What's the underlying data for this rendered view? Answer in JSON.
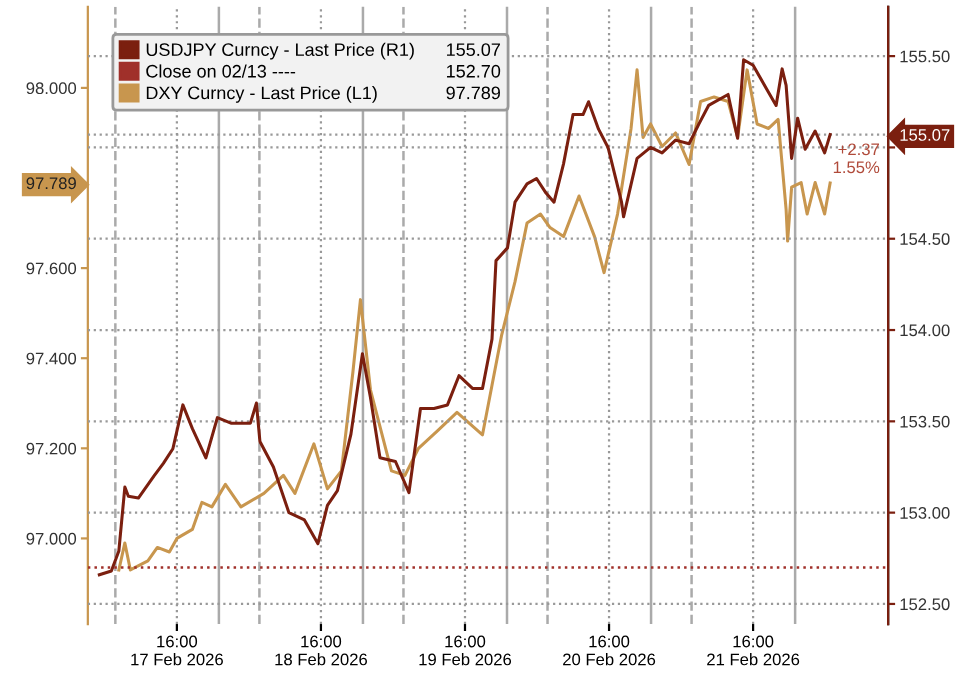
{
  "chart_data": {
    "type": "line",
    "series": [
      {
        "name": "USDJPY Curncy - Last Price (R1)",
        "color": "#7b1f0f",
        "axis": "y2",
        "x": [
          "2026-02-17T03:05",
          "2026-02-17T05:05",
          "2026-02-17T06:20",
          "2026-02-17T07:20",
          "2026-02-17T07:55",
          "2026-02-17T09:35",
          "2026-02-17T12:10",
          "2026-02-17T13:45",
          "2026-02-17T15:20",
          "2026-02-17T17:00",
          "2026-02-17T18:35",
          "2026-02-17T20:50",
          "2026-02-17T22:45",
          "2026-02-18T01:00",
          "2026-02-18T04:15",
          "2026-02-18T05:15",
          "2026-02-18T05:50",
          "2026-02-18T08:05",
          "2026-02-18T10:40",
          "2026-02-18T13:15",
          "2026-02-18T15:30",
          "2026-02-18T17:05",
          "2026-02-18T18:45",
          "2026-02-18T21:00",
          "2026-02-18T22:55",
          "2026-02-19T00:15",
          "2026-02-19T01:50",
          "2026-02-19T04:25",
          "2026-02-19T06:40",
          "2026-02-19T08:35",
          "2026-02-19T10:50",
          "2026-02-19T13:05",
          "2026-02-19T15:00",
          "2026-02-19T17:15",
          "2026-02-19T18:55",
          "2026-02-19T20:30",
          "2026-02-19T21:10",
          "2026-02-19T23:05",
          "2026-02-20T00:20",
          "2026-02-20T02:20",
          "2026-02-20T03:55",
          "2026-02-20T05:30",
          "2026-02-20T06:50",
          "2026-02-20T08:25",
          "2026-02-20T10:00",
          "2026-02-20T11:40",
          "2026-02-20T12:35",
          "2026-02-20T14:15",
          "2026-02-20T15:50",
          "2026-02-20T18:05",
          "2026-02-20T18:25",
          "2026-02-20T20:40",
          "2026-02-20T22:55",
          "2026-02-21T00:50",
          "2026-02-21T03:05",
          "2026-02-21T05:20",
          "2026-02-21T07:00",
          "2026-02-21T08:35",
          "2026-02-21T11:50",
          "2026-02-21T13:25",
          "2026-02-21T14:25",
          "2026-02-21T16:00",
          "2026-02-21T18:15",
          "2026-02-21T19:50",
          "2026-02-21T20:50",
          "2026-02-21T21:30",
          "2026-02-21T22:25",
          "2026-02-21T23:25",
          "2026-02-22T00:40",
          "2026-02-22T02:20",
          "2026-02-22T03:55",
          "2026-02-22T04:50"
        ],
        "values": [
          152.66,
          152.68,
          152.79,
          153.14,
          153.09,
          153.08,
          153.2,
          153.27,
          153.35,
          153.59,
          153.46,
          153.3,
          153.52,
          153.49,
          153.49,
          153.6,
          153.39,
          153.25,
          153.0,
          152.96,
          152.83,
          153.04,
          153.12,
          153.43,
          153.87,
          153.63,
          153.3,
          153.28,
          153.11,
          153.57,
          153.57,
          153.59,
          153.75,
          153.68,
          153.68,
          153.95,
          154.38,
          154.45,
          154.7,
          154.8,
          154.83,
          154.75,
          154.7,
          154.91,
          155.18,
          155.18,
          155.25,
          155.1,
          155.0,
          154.7,
          154.62,
          154.94,
          155.0,
          154.97,
          155.04,
          155.02,
          155.13,
          155.23,
          155.29,
          155.05,
          155.48,
          155.45,
          155.32,
          155.23,
          155.43,
          155.34,
          154.94,
          155.16,
          154.99,
          155.09,
          154.97,
          155.07
        ]
      },
      {
        "name": "DXY Curncy - Last Price (L1)",
        "color": "#c8964e",
        "axis": "y",
        "x": [
          "2026-02-17T06:20",
          "2026-02-17T07:20",
          "2026-02-17T08:15",
          "2026-02-17T11:10",
          "2026-02-17T12:45",
          "2026-02-17T14:45",
          "2026-02-17T16:00",
          "2026-02-17T18:35",
          "2026-02-17T20:10",
          "2026-02-17T21:50",
          "2026-02-18T00:05",
          "2026-02-18T02:40",
          "2026-02-18T06:30",
          "2026-02-18T09:45",
          "2026-02-18T11:40",
          "2026-02-18T14:50",
          "2026-02-18T17:05",
          "2026-02-18T19:25",
          "2026-02-18T21:20",
          "2026-02-18T22:35",
          "2026-02-19T00:15",
          "2026-02-19T03:45",
          "2026-02-19T06:00",
          "2026-02-19T08:15",
          "2026-02-19T11:30",
          "2026-02-19T14:40",
          "2026-02-19T18:55",
          "2026-02-19T20:30",
          "2026-02-19T22:05",
          "2026-02-20T00:20",
          "2026-02-20T02:20",
          "2026-02-20T04:35",
          "2026-02-20T06:10",
          "2026-02-20T08:25",
          "2026-02-20T11:00",
          "2026-02-20T13:35",
          "2026-02-20T15:10",
          "2026-02-20T17:25",
          "2026-02-20T19:40",
          "2026-02-20T20:40",
          "2026-02-20T21:40",
          "2026-02-20T22:55",
          "2026-02-21T00:50",
          "2026-02-21T03:05",
          "2026-02-21T05:20",
          "2026-02-21T07:15",
          "2026-02-21T09:30",
          "2026-02-21T11:50",
          "2026-02-21T13:25",
          "2026-02-21T15:00",
          "2026-02-21T16:40",
          "2026-02-21T18:35",
          "2026-02-21T20:10",
          "2026-02-21T21:30",
          "2026-02-21T21:45",
          "2026-02-21T22:25",
          "2026-02-22T00:00",
          "2026-02-22T01:00",
          "2026-02-22T02:20",
          "2026-02-22T03:55",
          "2026-02-22T04:50"
        ],
        "values": [
          96.93,
          96.99,
          96.93,
          96.95,
          96.98,
          96.97,
          97.0,
          97.02,
          97.08,
          97.07,
          97.12,
          97.07,
          97.1,
          97.14,
          97.1,
          97.21,
          97.11,
          97.15,
          97.37,
          97.53,
          97.33,
          97.15,
          97.14,
          97.2,
          97.24,
          97.28,
          97.23,
          97.34,
          97.45,
          97.57,
          97.7,
          97.72,
          97.69,
          97.67,
          97.76,
          97.67,
          97.59,
          97.72,
          97.91,
          98.04,
          97.89,
          97.92,
          97.87,
          97.9,
          97.83,
          97.97,
          97.98,
          97.97,
          97.89,
          98.04,
          97.92,
          97.91,
          97.93,
          97.73,
          97.66,
          97.78,
          97.79,
          97.72,
          97.79,
          97.72,
          97.789
        ]
      }
    ],
    "xlim": [
      "2026-02-17T01:10",
      "2026-02-22T14:30"
    ],
    "xticks": [
      {
        "value": "2026-02-17T16:00",
        "label": "16:00\n17 Feb 2026"
      },
      {
        "value": "2026-02-18T16:00",
        "label": "16:00\n18 Feb 2026"
      },
      {
        "value": "2026-02-19T16:00",
        "label": "16:00\n19 Feb 2026"
      },
      {
        "value": "2026-02-20T16:00",
        "label": "16:00\n20 Feb 2026"
      },
      {
        "value": "2026-02-21T16:00",
        "label": "16:00\n21 Feb 2026"
      }
    ],
    "ylim": [
      96.81,
      98.18
    ],
    "yticks": [
      {
        "value": 97.0,
        "label": "97.000"
      },
      {
        "value": 97.2,
        "label": "97.200"
      },
      {
        "value": 97.4,
        "label": "97.400"
      },
      {
        "value": 97.6,
        "label": "97.600"
      },
      {
        "value": 97.789,
        "label": "97.789"
      },
      {
        "value": 98.0,
        "label": "98.000"
      }
    ],
    "y2lim": [
      152.39,
      155.77
    ],
    "y2ticks": [
      {
        "value": 152.5,
        "label": "152.50"
      },
      {
        "value": 153.0,
        "label": "153.00"
      },
      {
        "value": 153.5,
        "label": "153.50"
      },
      {
        "value": 154.0,
        "label": "154.00"
      },
      {
        "value": 154.5,
        "label": "154.50"
      },
      {
        "value": 155.0,
        "label": null
      },
      {
        "value": 155.07,
        "label": "155.07"
      },
      {
        "value": 155.5,
        "label": "155.50"
      }
    ],
    "ref_lines": [
      {
        "axis": "y2",
        "value": 152.7,
        "label": "Close on 02/13 ----",
        "color": "#a0302a",
        "line_style": "dotted"
      },
      {
        "axis": "x",
        "value": "2026-02-17T05:45",
        "color": "#aaaaaa",
        "line_style": "dashed"
      },
      {
        "axis": "x",
        "value": "2026-02-18T05:45",
        "color": "#aaaaaa",
        "line_style": "dashed"
      },
      {
        "axis": "x",
        "value": "2026-02-19T05:45",
        "color": "#aaaaaa",
        "line_style": "dashed"
      },
      {
        "axis": "x",
        "value": "2026-02-20T05:45",
        "color": "#aaaaaa",
        "line_style": "dashed"
      },
      {
        "axis": "x",
        "value": "2026-02-21T05:45",
        "color": "#aaaaaa",
        "line_style": "dashed"
      },
      {
        "axis": "x",
        "value": "2026-02-17T23:00",
        "color": "#aaaaaa",
        "line_style": "solid"
      },
      {
        "axis": "x",
        "value": "2026-02-18T23:00",
        "color": "#aaaaaa",
        "line_style": "solid"
      },
      {
        "axis": "x",
        "value": "2026-02-19T23:00",
        "color": "#aaaaaa",
        "line_style": "solid"
      },
      {
        "axis": "x",
        "value": "2026-02-20T23:00",
        "color": "#aaaaaa",
        "line_style": "solid"
      },
      {
        "axis": "x",
        "value": "2026-02-21T23:00",
        "color": "#aaaaaa",
        "line_style": "solid"
      }
    ],
    "annotations": [
      "155.07",
      "152.70",
      "97.789",
      "+2.37",
      "1.55%"
    ],
    "grid": true,
    "legend": "top left",
    "marker": "none",
    "line_style": "solid"
  }
}
